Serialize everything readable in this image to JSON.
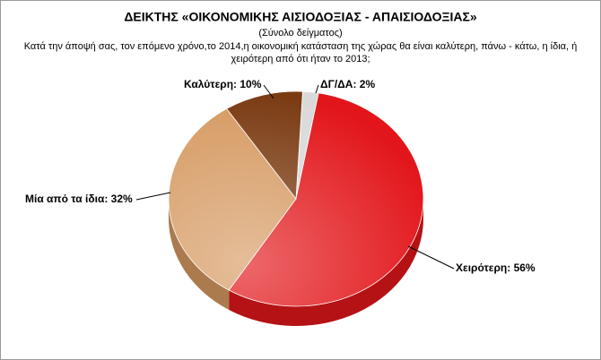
{
  "chart_data": {
    "type": "pie",
    "title": "ΔΕΙΚΤΗΣ «ΟΙΚΟΝΟΜΙΚΗΣ ΑΙΣΙΟΔΟΞΙΑΣ - ΑΠΑΙΣΙΟΔΟΞΙΑΣ»",
    "subtitle": "(Σύνολο δείγματος)",
    "question": [
      "Κατά την άποψή σας, τον επόμενο χρόνο,το 2014,η οικονομική κατάσταση της χώρας θα είναι καλύτερη, πάνω - κάτω, η ίδια, ή",
      "χειρότερη από ότι ήταν το 2013;"
    ],
    "values": [
      2,
      56,
      32,
      10
    ],
    "value_labels": [
      "ΔΓ/ΔΑ: 2%",
      "Χειρότερη: 56%",
      "Μία από τα ίδια: 32%",
      "Καλύτερη: 10%"
    ],
    "colors": [
      "#d9d9d9",
      "#e2161a",
      "#d69a62",
      "#7a3b12"
    ]
  }
}
